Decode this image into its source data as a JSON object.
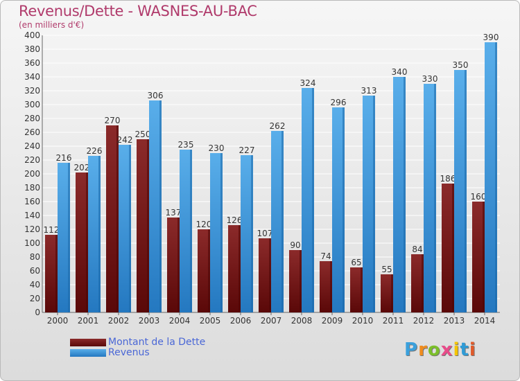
{
  "title": "Revenus/Dette - WASNES-AU-BAC",
  "subtitle": "(en milliers d'€)",
  "logo": "Proxiti",
  "colors": {
    "dette": "#7a1a1a",
    "revenus": "#2f86cf",
    "title": "#b03a6b",
    "legend_text": "#4a67d6"
  },
  "legend": [
    {
      "label": "Montant de la Dette",
      "color": "#6a0f0f"
    },
    {
      "label": "Revenus",
      "color": "#3b97dd"
    }
  ],
  "chart_data": {
    "type": "bar",
    "title": "Revenus/Dette - WASNES-AU-BAC",
    "ylabel": "(en milliers d'€)",
    "categories": [
      "2000",
      "2001",
      "2002",
      "2003",
      "2004",
      "2005",
      "2006",
      "2007",
      "2008",
      "2009",
      "2010",
      "2011",
      "2012",
      "2013",
      "2014"
    ],
    "series": [
      {
        "name": "Montant de la Dette",
        "values": [
          112,
          202,
          270,
          250,
          137,
          120,
          126,
          107,
          90,
          74,
          65,
          55,
          84,
          186,
          160
        ]
      },
      {
        "name": "Revenus",
        "values": [
          216,
          226,
          242,
          306,
          235,
          230,
          227,
          262,
          324,
          296,
          313,
          340,
          330,
          350,
          390
        ]
      }
    ],
    "ylim": [
      0,
      400
    ],
    "yticks": [
      0,
      20,
      40,
      60,
      80,
      100,
      120,
      140,
      160,
      180,
      200,
      220,
      240,
      260,
      280,
      300,
      320,
      340,
      360,
      380,
      400
    ],
    "grid": true,
    "legend_position": "bottom-left"
  }
}
